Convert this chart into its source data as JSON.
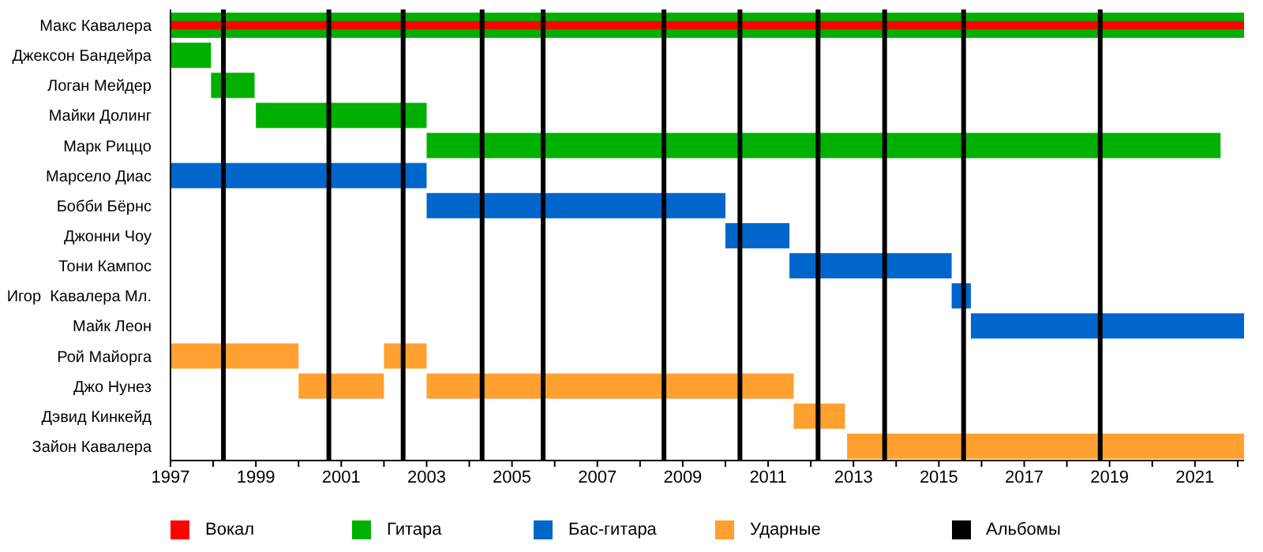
{
  "chart_data": {
    "type": "bar",
    "orientation": "horizontal",
    "categories": [
      "Макс Кавалера",
      "Джексон Бандейра",
      "Логан Мейдер",
      "Майки Долинг",
      "Марк Риццо",
      "Марсело Диас",
      "Бобби Бёрнс",
      "Джонни Чоу",
      "Тони Кампос",
      "Игор  Кавалера Мл.",
      "Майк Леон",
      "Рой Майорга",
      "Джо Нунез",
      "Дэвид Кинкейд",
      "Зайон Кавалера"
    ],
    "series": [
      {
        "name": "Вокал",
        "color": "#ff0000",
        "base": [
          1997,
          null,
          null,
          null,
          null,
          null,
          null,
          null,
          null,
          null,
          null,
          null,
          null,
          null,
          null
        ],
        "values": [
          25.15,
          null,
          null,
          null,
          null,
          null,
          null,
          null,
          null,
          null,
          null,
          null,
          null,
          null,
          null
        ]
      },
      {
        "name": "Гитара",
        "color": "#00b000",
        "base": [
          1997,
          1997,
          1997.95,
          1999,
          2003,
          null,
          null,
          null,
          null,
          null,
          null,
          null,
          null,
          null,
          null
        ],
        "values": [
          25.15,
          0.95,
          1.02,
          4,
          18.6,
          null,
          null,
          null,
          null,
          null,
          null,
          null,
          null,
          null,
          null
        ]
      },
      {
        "name": "Бас-гитара",
        "color": "#0066cc",
        "base": [
          null,
          null,
          null,
          null,
          null,
          1997,
          2003,
          2010,
          2011.5,
          2015.3,
          2015.75,
          null,
          null,
          null,
          null
        ],
        "values": [
          null,
          null,
          null,
          null,
          null,
          6,
          7,
          1.5,
          3.8,
          0.45,
          6.4,
          null,
          null,
          null,
          null
        ]
      },
      {
        "name": "Ударные",
        "color": "#ffa030",
        "base": [
          null,
          null,
          null,
          null,
          null,
          null,
          null,
          null,
          null,
          null,
          null,
          1997,
          2000,
          2011.6,
          2012.85
        ],
        "values": [
          null,
          null,
          null,
          null,
          null,
          null,
          null,
          null,
          null,
          null,
          null,
          3,
          2,
          1.2,
          9.3
        ]
      },
      {
        "color": "#ffa030",
        "base": [
          null,
          null,
          null,
          null,
          null,
          null,
          null,
          null,
          null,
          null,
          null,
          2002,
          2003,
          null,
          null
        ],
        "values": [
          null,
          null,
          null,
          null,
          null,
          null,
          null,
          null,
          null,
          null,
          null,
          1,
          8.6,
          null,
          null
        ]
      }
    ],
    "xlim": [
      1997,
      2022.15
    ],
    "xticks": [
      1997,
      {
        "value": 1998,
        "label": null
      },
      1999,
      {
        "value": 2000,
        "label": null
      },
      2001,
      {
        "value": 2002,
        "label": null
      },
      2003,
      {
        "value": 2004,
        "label": null
      },
      2005,
      {
        "value": 2006,
        "label": null
      },
      2007,
      {
        "value": 2008,
        "label": null
      },
      2009,
      {
        "value": 2010,
        "label": null
      },
      2011,
      {
        "value": 2012,
        "label": null
      },
      2013,
      {
        "value": 2014,
        "label": null
      },
      2015,
      {
        "value": 2016,
        "label": null
      },
      2017,
      {
        "value": 2018,
        "label": null
      },
      2019,
      {
        "value": 2020,
        "label": null
      },
      2021,
      {
        "value": 2022,
        "label": null
      }
    ],
    "ref_lines": [
      {
        "axis": "x",
        "value": 1998.24,
        "label": "Альбомы",
        "color": "#000000"
      },
      {
        "axis": "x",
        "value": 2000.71,
        "color": "#000000"
      },
      {
        "axis": "x",
        "value": 2002.45,
        "color": "#000000"
      },
      {
        "axis": "x",
        "value": 2004.3,
        "color": "#000000"
      },
      {
        "axis": "x",
        "value": 2005.73,
        "color": "#000000"
      },
      {
        "axis": "x",
        "value": 2008.56,
        "color": "#000000"
      },
      {
        "axis": "x",
        "value": 2010.34,
        "color": "#000000"
      },
      {
        "axis": "x",
        "value": 2012.17,
        "color": "#000000"
      },
      {
        "axis": "x",
        "value": 2013.73,
        "color": "#000000"
      },
      {
        "axis": "x",
        "value": 2015.58,
        "color": "#000000"
      },
      {
        "axis": "x",
        "value": 2018.78,
        "color": "#000000"
      }
    ],
    "grid": false,
    "legend": "bottom"
  }
}
